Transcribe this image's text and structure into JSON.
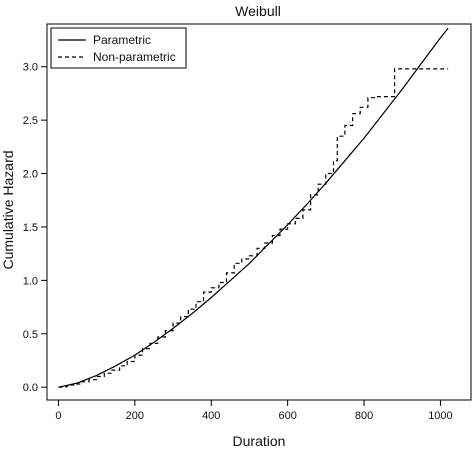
{
  "chart_data": {
    "type": "line",
    "title": "Weibull",
    "xlabel": "Duration",
    "ylabel": "Cumulative Hazard",
    "xlim": [
      -30,
      1080
    ],
    "ylim": [
      -0.12,
      3.4
    ],
    "xticks": [
      0,
      200,
      400,
      600,
      800,
      1000
    ],
    "yticks": [
      0.0,
      0.5,
      1.0,
      1.5,
      2.0,
      2.5,
      3.0
    ],
    "xtick_labels": [
      "0",
      "200",
      "400",
      "600",
      "800",
      "1000"
    ],
    "ytick_labels": [
      "0.0",
      "0.5",
      "1.0",
      "1.5",
      "2.0",
      "2.5",
      "3.0"
    ],
    "grid": false,
    "legend_position": "top-left",
    "series": [
      {
        "name": "Parametric",
        "style": "solid",
        "color": "#000000",
        "x": [
          0,
          50,
          100,
          150,
          200,
          250,
          300,
          350,
          400,
          450,
          500,
          550,
          600,
          650,
          700,
          750,
          800,
          850,
          900,
          950,
          1000,
          1020
        ],
        "y": [
          0.0,
          0.04,
          0.11,
          0.2,
          0.3,
          0.42,
          0.55,
          0.69,
          0.84,
          1.0,
          1.16,
          1.34,
          1.52,
          1.71,
          1.91,
          2.12,
          2.33,
          2.56,
          2.79,
          3.03,
          3.27,
          3.36
        ]
      },
      {
        "name": "Non-parametric",
        "style": "dashed",
        "color": "#000000",
        "x": [
          0,
          20,
          30,
          45,
          60,
          80,
          100,
          120,
          140,
          160,
          180,
          200,
          220,
          240,
          260,
          280,
          300,
          320,
          340,
          360,
          380,
          400,
          420,
          440,
          460,
          480,
          500,
          520,
          540,
          560,
          580,
          600,
          620,
          640,
          660,
          680,
          700,
          720,
          730,
          750,
          770,
          790,
          810,
          830,
          880,
          1020
        ],
        "y": [
          0.0,
          0.01,
          0.02,
          0.03,
          0.05,
          0.07,
          0.1,
          0.13,
          0.16,
          0.2,
          0.24,
          0.3,
          0.36,
          0.41,
          0.47,
          0.53,
          0.6,
          0.66,
          0.73,
          0.8,
          0.89,
          0.93,
          0.98,
          1.07,
          1.16,
          1.2,
          1.23,
          1.3,
          1.35,
          1.42,
          1.48,
          1.53,
          1.58,
          1.66,
          1.8,
          1.9,
          2.0,
          2.12,
          2.35,
          2.45,
          2.56,
          2.62,
          2.71,
          2.72,
          2.98,
          2.98
        ]
      }
    ]
  }
}
